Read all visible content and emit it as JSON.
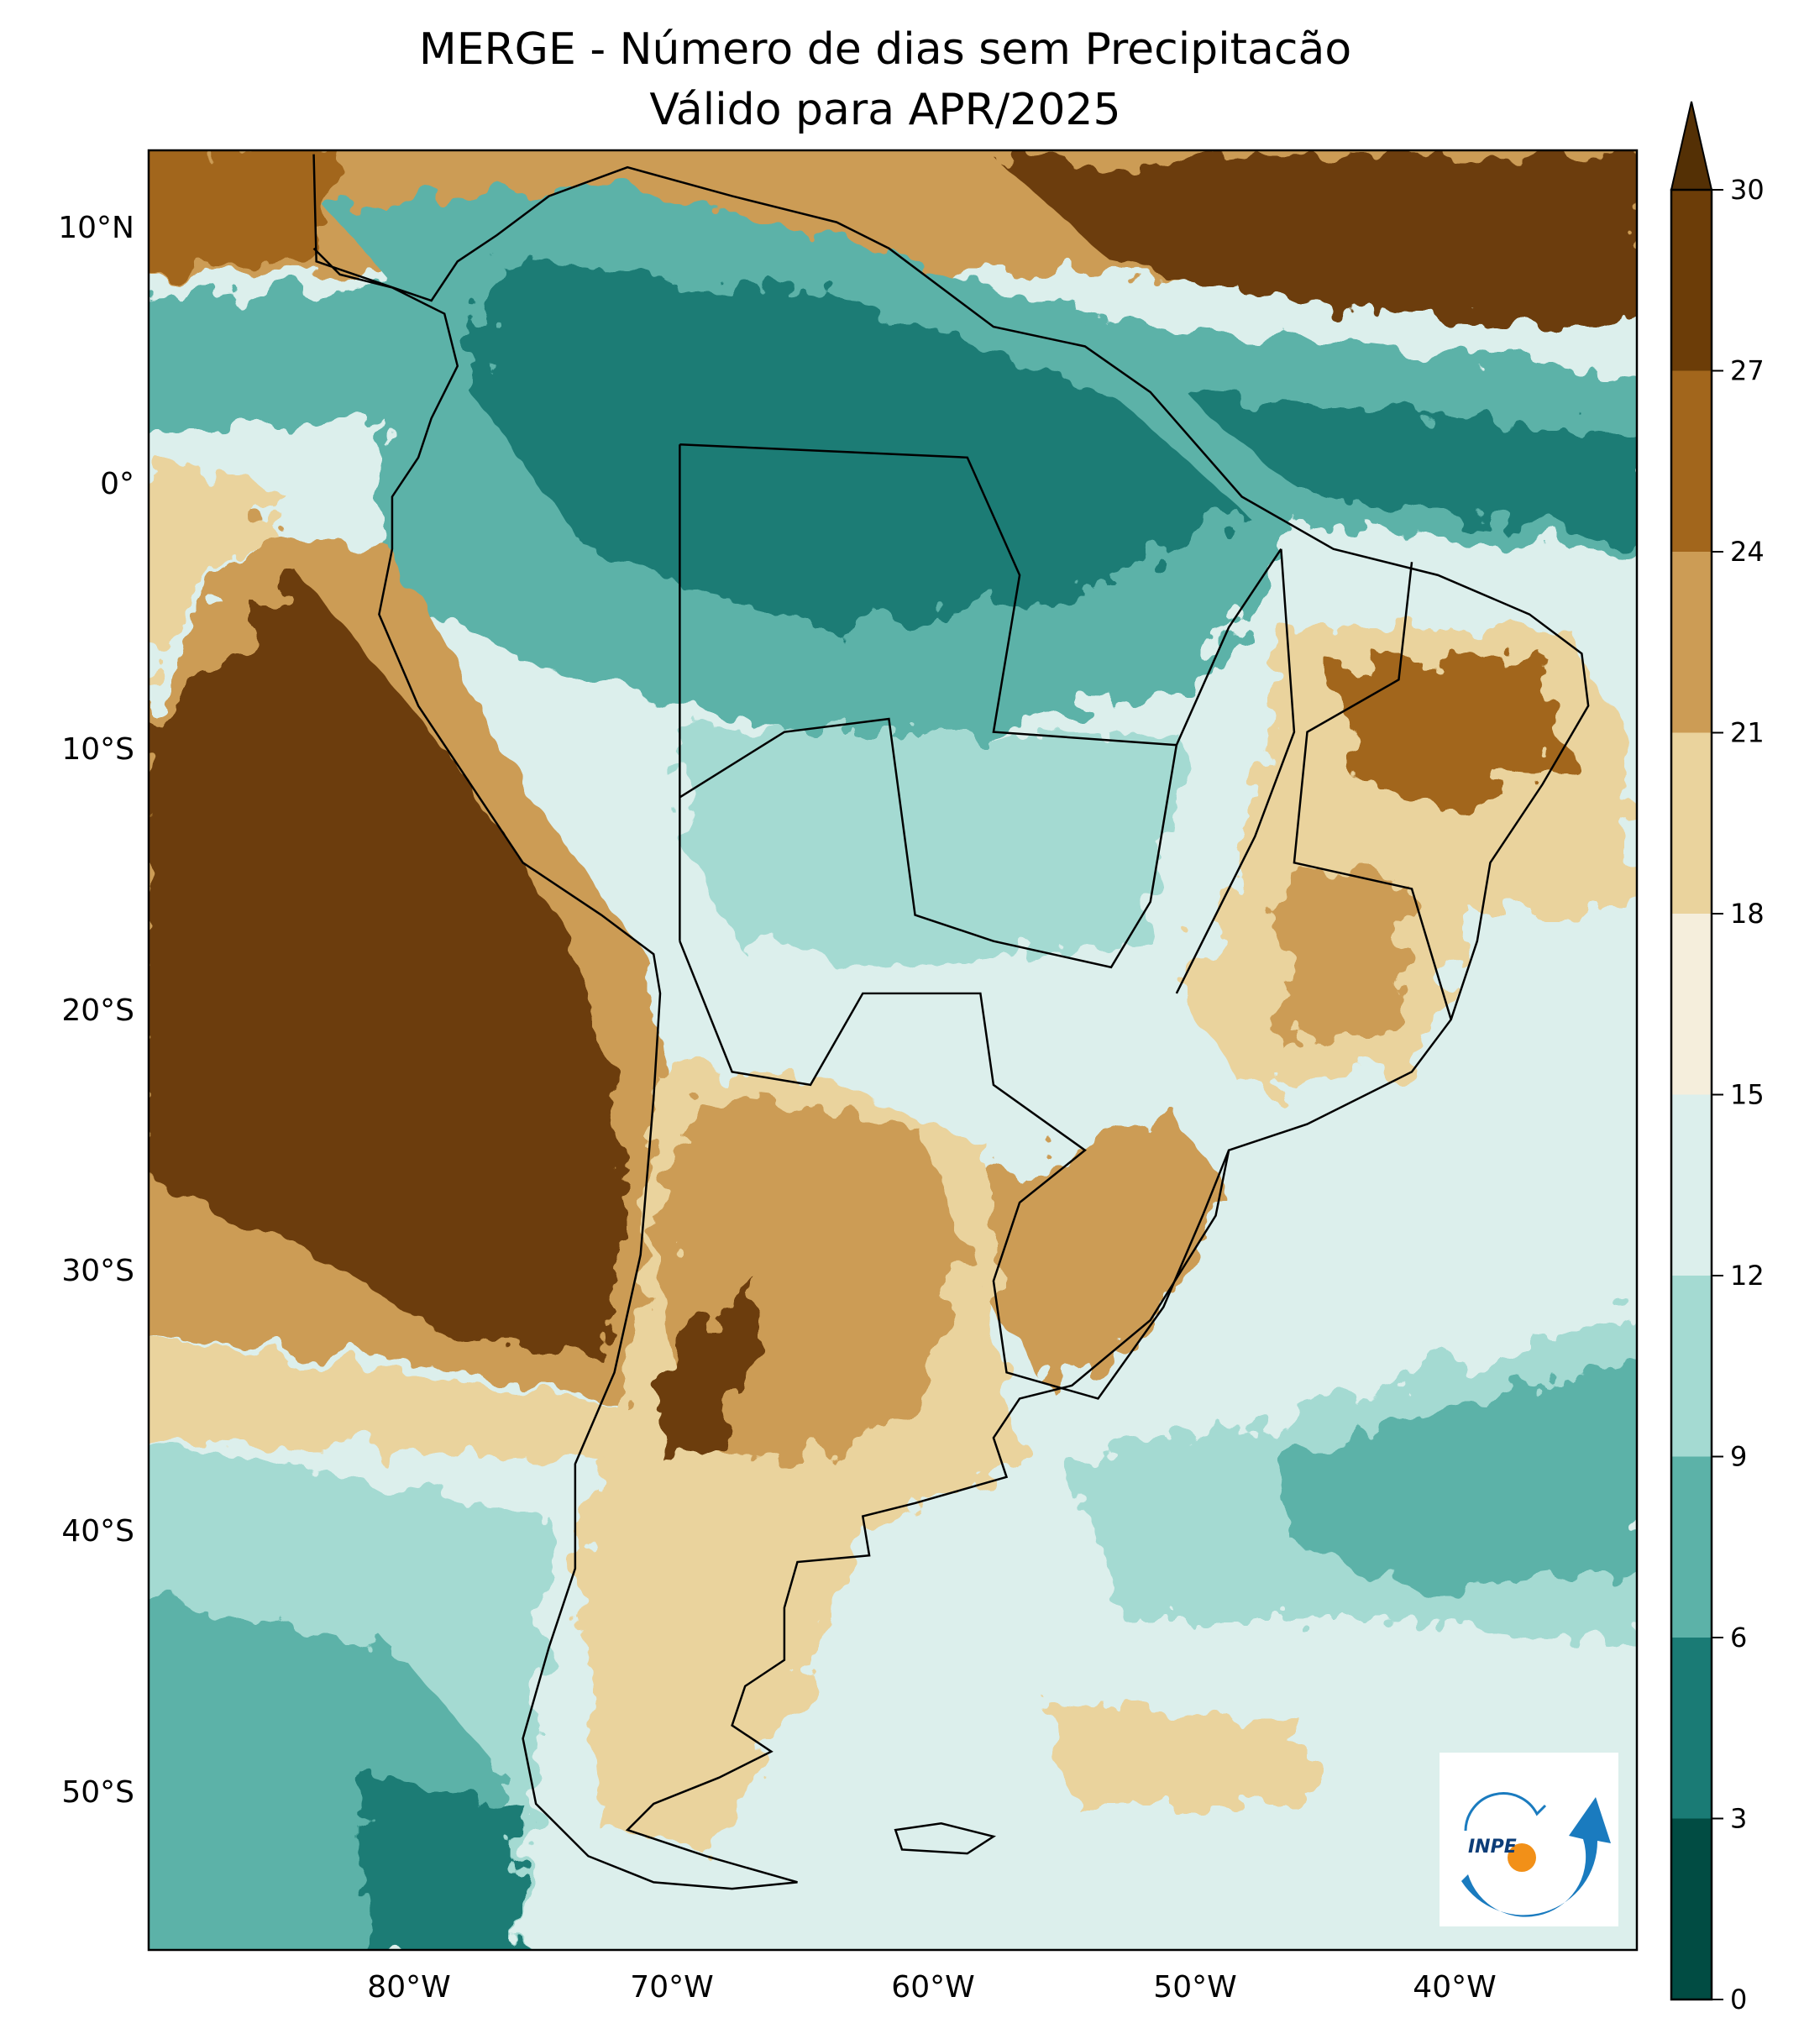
{
  "title": {
    "line1": "MERGE - Número de dias sem Precipitacão",
    "line2": "Válido para APR/2025"
  },
  "map": {
    "lat_labels": [
      "10°N",
      "0°",
      "10°S",
      "20°S",
      "30°S",
      "40°S",
      "50°S"
    ],
    "lon_labels": [
      "80°W",
      "70°W",
      "60°W",
      "50°W",
      "40°W"
    ],
    "extent_deg": {
      "lon": [
        -90,
        -33
      ],
      "lat": [
        -56,
        13
      ]
    }
  },
  "colorbar": {
    "levels": [
      0,
      3,
      6,
      9,
      12,
      15,
      18,
      21,
      24,
      27,
      30
    ],
    "labels": [
      "0",
      "3",
      "6",
      "9",
      "12",
      "15",
      "18",
      "21",
      "24",
      "27",
      "30"
    ],
    "colors": [
      "#014c43",
      "#1a7b75",
      "#5cb2a8",
      "#a4dad2",
      "#dcefec",
      "#f5eedc",
      "#ead39d",
      "#cc9c55",
      "#a2661c",
      "#6c3d08"
    ],
    "extend_color": "#543005",
    "extend": "max"
  },
  "logo": {
    "text": "INPE"
  }
}
